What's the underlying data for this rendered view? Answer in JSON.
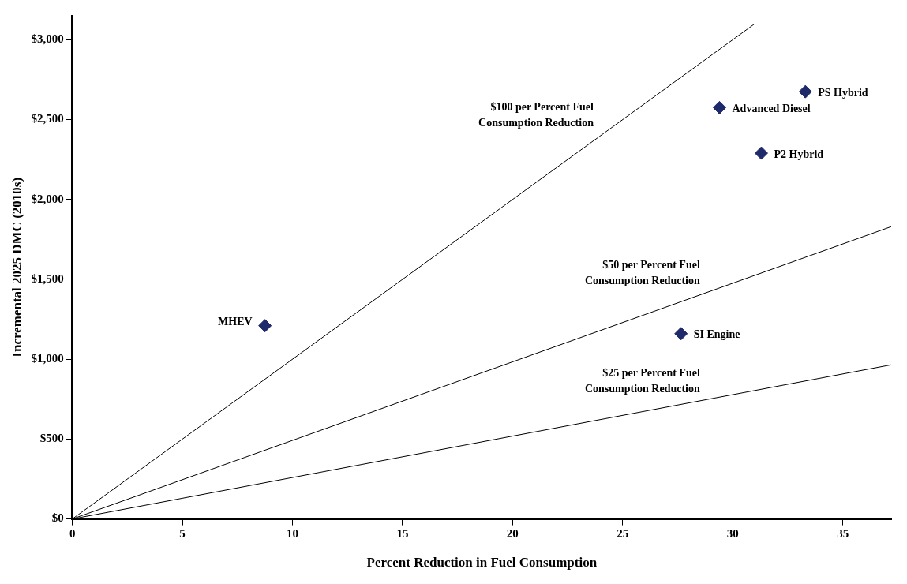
{
  "chart_data": {
    "type": "scatter",
    "xlabel": "Percent Reduction in Fuel Consumption",
    "ylabel": "Incremental 2025 DMC (2010s)",
    "xlim": [
      0,
      37.2
    ],
    "ylim": [
      0,
      3150
    ],
    "xticks": [
      0,
      5,
      10,
      15,
      20,
      25,
      30,
      35
    ],
    "yticks": [
      {
        "value": 0,
        "label": "$0"
      },
      {
        "value": 500,
        "label": "$500"
      },
      {
        "value": 1000,
        "label": "$1,000"
      },
      {
        "value": 1500,
        "label": "$1,500"
      },
      {
        "value": 2000,
        "label": "$2,000"
      },
      {
        "value": 2500,
        "label": "$2,500"
      },
      {
        "value": 3000,
        "label": "$3,000"
      }
    ],
    "grid": false,
    "legend": false,
    "series": [
      {
        "name": "MHEV",
        "color": "#1f2a6b",
        "marker": "diamond",
        "x": [
          8.75
        ],
        "values": [
          1210
        ]
      },
      {
        "name": "SI Engine",
        "color": "#1f2a6b",
        "marker": "diamond",
        "x": [
          27.65
        ],
        "values": [
          1160
        ]
      },
      {
        "name": "Advanced Diesel",
        "color": "#1f2a6b",
        "marker": "diamond",
        "x": [
          29.4
        ],
        "values": [
          2575
        ]
      },
      {
        "name": "P2 Hybrid",
        "color": "#1f2a6b",
        "marker": "diamond",
        "x": [
          31.3
        ],
        "values": [
          2290
        ]
      },
      {
        "name": "PS Hybrid",
        "color": "#1f2a6b",
        "marker": "diamond",
        "x": [
          33.3
        ],
        "values": [
          2675
        ]
      },
      {
        "name": "$100 per Percent Fuel Consumption Reduction",
        "type": "line",
        "color": "#000000",
        "marker": "none",
        "x": [
          0,
          31
        ],
        "values": [
          0,
          3100
        ]
      },
      {
        "name": "$50 per Percent Fuel Consumption Reduction",
        "type": "line",
        "color": "#000000",
        "marker": "none",
        "x": [
          0,
          37.2
        ],
        "values": [
          0,
          1830
        ]
      },
      {
        "name": "$25 per Percent Fuel Consumption Reduction",
        "type": "line",
        "color": "#000000",
        "marker": "none",
        "x": [
          0,
          37.2
        ],
        "values": [
          0,
          965
        ]
      }
    ]
  }
}
